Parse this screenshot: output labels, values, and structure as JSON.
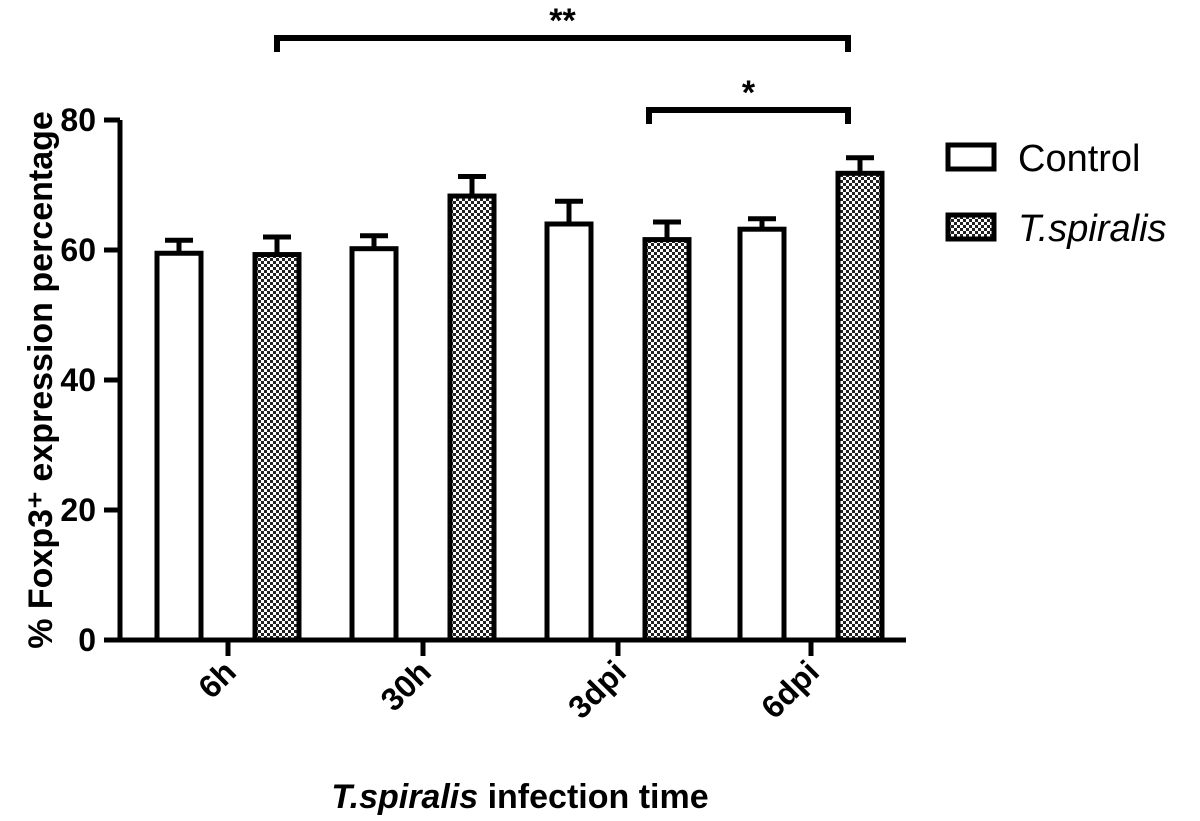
{
  "chart_data": {
    "type": "bar",
    "categories": [
      "6h",
      "30h",
      "3dpi",
      "6dpi"
    ],
    "series": [
      {
        "name": "Control",
        "values": [
          59.5,
          60.2,
          64.0,
          63.2
        ],
        "errors": [
          2.0,
          2.0,
          3.5,
          1.6
        ],
        "fill": "#ffffff"
      },
      {
        "name": "T.spiralis",
        "values": [
          59.3,
          68.3,
          61.6,
          71.8
        ],
        "errors": [
          2.7,
          3.0,
          2.7,
          2.4
        ],
        "fill": "checkered"
      }
    ],
    "ylabel": "% Foxp3⁺ expression percentage",
    "xlabel": {
      "italic": "T.spiralis",
      "rest": " infection time"
    },
    "ylim": [
      0,
      80
    ],
    "yticks": [
      "0",
      "20",
      "40",
      "60",
      "80"
    ],
    "grid": false,
    "legend": "right",
    "significance": [
      {
        "label": "**",
        "from": {
          "category": "6h",
          "series": "T.spiralis"
        },
        "to": {
          "category": "6dpi",
          "series": "T.spiralis"
        }
      },
      {
        "label": "*",
        "from": {
          "category": "3dpi",
          "series": "T.spiralis"
        },
        "to": {
          "category": "6dpi",
          "series": "T.spiralis"
        }
      }
    ]
  }
}
